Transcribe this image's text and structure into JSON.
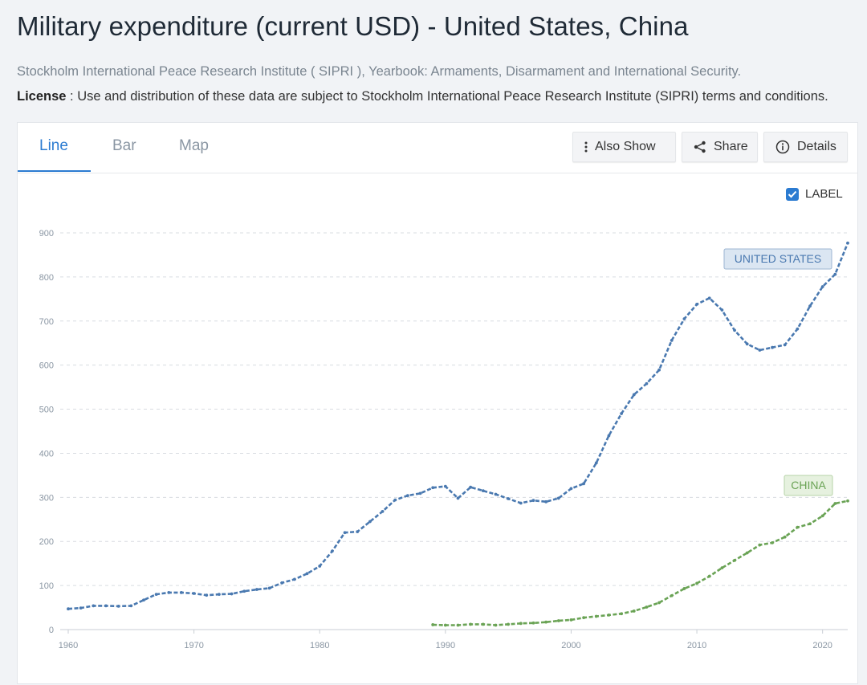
{
  "title": "Military expenditure (current USD) - United States, China",
  "source": "Stockholm International Peace Research Institute ( SIPRI ), Yearbook: Armaments, Disarmament and International Security.",
  "license": {
    "label": "License",
    "text": " : Use and distribution of these data are subject to Stockholm International Peace Research Institute (SIPRI) terms and conditions."
  },
  "tabs": [
    {
      "label": "Line",
      "active": true
    },
    {
      "label": "Bar",
      "active": false
    },
    {
      "label": "Map",
      "active": false
    }
  ],
  "toolbar": {
    "also_show": "Also Show",
    "share": "Share",
    "details": "Details"
  },
  "label_toggle": {
    "text": "LABEL",
    "checked": true
  },
  "colors": {
    "united_states": "#4a79b0",
    "china": "#6aa355",
    "accent": "#2b7bd1"
  },
  "chart_data": {
    "type": "line",
    "title": "Military expenditure (current USD)",
    "xlabel": "",
    "ylabel": "",
    "xlim": [
      1960,
      2022
    ],
    "ylim": [
      0,
      900
    ],
    "y_ticks": [
      0,
      100,
      200,
      300,
      400,
      500,
      600,
      700,
      800,
      900
    ],
    "x_ticks": [
      1960,
      1970,
      1980,
      1990,
      2000,
      2010,
      2020
    ],
    "grid": true,
    "series": [
      {
        "name": "UNITED STATES",
        "key": "united_states",
        "x": [
          1960,
          1961,
          1962,
          1963,
          1964,
          1965,
          1966,
          1967,
          1968,
          1969,
          1970,
          1971,
          1972,
          1973,
          1974,
          1975,
          1976,
          1977,
          1978,
          1979,
          1980,
          1981,
          1982,
          1983,
          1984,
          1985,
          1986,
          1987,
          1988,
          1989,
          1990,
          1991,
          1992,
          1993,
          1994,
          1995,
          1996,
          1997,
          1998,
          1999,
          2000,
          2001,
          2002,
          2003,
          2004,
          2005,
          2006,
          2007,
          2008,
          2009,
          2010,
          2011,
          2012,
          2013,
          2014,
          2015,
          2016,
          2017,
          2018,
          2019,
          2020,
          2021,
          2022
        ],
        "values": [
          47,
          49,
          54,
          54,
          53,
          54,
          67,
          80,
          84,
          84,
          82,
          78,
          80,
          81,
          87,
          91,
          94,
          106,
          114,
          127,
          144,
          178,
          220,
          222,
          245,
          268,
          294,
          304,
          309,
          322,
          325,
          298,
          323,
          315,
          307,
          297,
          287,
          293,
          290,
          298,
          320,
          331,
          378,
          440,
          490,
          533,
          558,
          589,
          656,
          705,
          738,
          752,
          725,
          679,
          648,
          634,
          640,
          646,
          682,
          734,
          778,
          806,
          877
        ]
      },
      {
        "name": "CHINA",
        "key": "china",
        "x": [
          1989,
          1990,
          1991,
          1992,
          1993,
          1994,
          1995,
          1996,
          1997,
          1998,
          1999,
          2000,
          2001,
          2002,
          2003,
          2004,
          2005,
          2006,
          2007,
          2008,
          2009,
          2010,
          2011,
          2012,
          2013,
          2014,
          2015,
          2016,
          2017,
          2018,
          2019,
          2020,
          2021,
          2022
        ],
        "values": [
          11,
          10,
          10,
          12,
          12,
          10,
          12,
          14,
          15,
          17,
          20,
          22,
          27,
          30,
          33,
          36,
          42,
          51,
          61,
          77,
          93,
          105,
          121,
          140,
          157,
          174,
          192,
          197,
          210,
          232,
          240,
          258,
          286,
          292
        ]
      }
    ],
    "annotations": [
      "UNITED STATES",
      "CHINA"
    ]
  }
}
